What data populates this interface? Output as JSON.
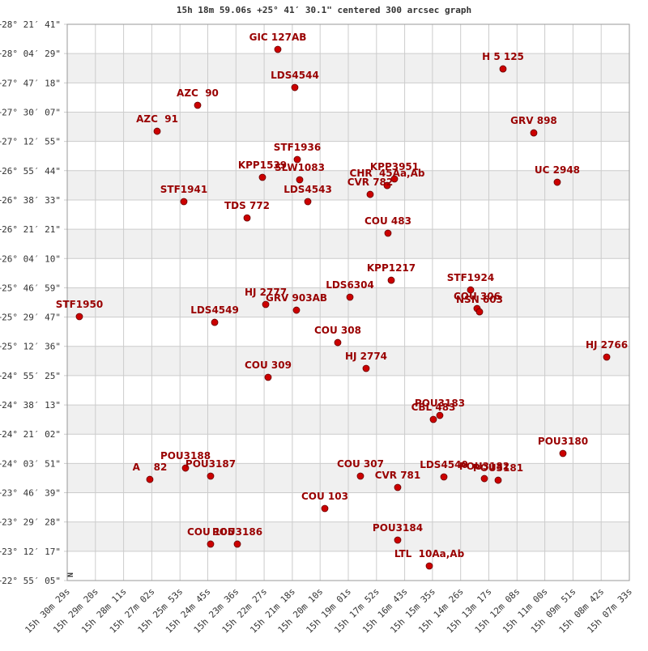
{
  "chart_data": {
    "type": "scatter",
    "title": "15h 18m 59.06s +25° 41′ 30.1\" centered 300 arcsec graph",
    "compass": "N",
    "marker_color": "#cc0000",
    "label_color": "#990000",
    "grid": true,
    "labels": [
      "GIC 127AB",
      "H 5 125",
      "LDS4544",
      "AZC  90",
      "AZC  91",
      "GRV 898",
      "STF1936",
      "KPP1539",
      "SLW1083",
      "CHR  45Aa,Ab",
      "KPP3951",
      "CVR 782",
      "UC 2948",
      "STF1941",
      "LDS4543",
      "TDS 772",
      "COU 483",
      "KPP1217",
      "STF1924",
      "COU 306",
      "NSN 603",
      "LDS6304",
      "HJ 2777",
      "GRV 903AB",
      "STF1950",
      "LDS4549",
      "COU 308",
      "HJ 2766",
      "HJ 2774",
      "COU 309",
      "POU3183",
      "CBL 483",
      "POU3180",
      "POU3188",
      "POU3187",
      "A    82",
      "COU 307",
      "LDS4540",
      "POU3182",
      "POU3181",
      "CVR 781",
      "COU 103",
      "COU 105",
      "POU3186",
      "POU3184",
      "LTL  10Aa,Ab"
    ],
    "x": [
      55313.5,
      54762.3,
      55271.9,
      55509.8,
      55608.9,
      54687.0,
      55265.9,
      55351.2,
      55260.0,
      55045.8,
      55028.0,
      55087.5,
      54629.5,
      55543.5,
      55240.1,
      55388.8,
      55043.9,
      55035.9,
      54841.6,
      54825.8,
      54819.8,
      55137.0,
      55343.2,
      55267.9,
      55799.3,
      55468.1,
      55166.8,
      54508.5,
      55097.4,
      55337.3,
      54917.0,
      54932.8,
      54615.6,
      55539.5,
      55478.1,
      55626.8,
      55111.3,
      54907.0,
      54807.9,
      54774.2,
      55020.1,
      55198.5,
      55478.1,
      55412.6,
      55020.1,
      54942.7
    ],
    "y": [
      28.116,
      27.925,
      27.743,
      27.569,
      27.315,
      27.299,
      27.038,
      26.864,
      26.84,
      26.784,
      26.848,
      26.697,
      26.816,
      26.626,
      26.626,
      26.467,
      26.317,
      25.857,
      25.762,
      25.58,
      25.548,
      25.691,
      25.62,
      25.564,
      25.501,
      25.445,
      25.247,
      25.105,
      24.994,
      24.907,
      24.534,
      24.495,
      24.162,
      24.019,
      23.94,
      23.908,
      23.94,
      23.932,
      23.916,
      23.9,
      23.829,
      23.623,
      23.275,
      23.275,
      23.314,
      23.061
    ],
    "xlim": [
      55829,
      54453
    ],
    "ylim": [
      22.9181,
      28.3614
    ],
    "xticks": [
      {
        "value": 55829,
        "label": "15h 30m 29s"
      },
      {
        "value": 55760,
        "label": "15h 29m 20s"
      },
      {
        "value": 55691,
        "label": "15h 28m 11s"
      },
      {
        "value": 55622,
        "label": "15h 27m 02s"
      },
      {
        "value": 55553,
        "label": "15h 25m 53s"
      },
      {
        "value": 55485,
        "label": "15h 24m 45s"
      },
      {
        "value": 55416,
        "label": "15h 23m 36s"
      },
      {
        "value": 55347,
        "label": "15h 22m 27s"
      },
      {
        "value": 55278,
        "label": "15h 21m 18s"
      },
      {
        "value": 55210,
        "label": "15h 20m 10s"
      },
      {
        "value": 55141,
        "label": "15h 19m 01s"
      },
      {
        "value": 55072,
        "label": "15h 17m 52s"
      },
      {
        "value": 55003,
        "label": "15h 16m 43s"
      },
      {
        "value": 54935,
        "label": "15h 15m 35s"
      },
      {
        "value": 54866,
        "label": "15h 14m 26s"
      },
      {
        "value": 54797,
        "label": "15h 13m 17s"
      },
      {
        "value": 54728,
        "label": "15h 12m 08s"
      },
      {
        "value": 54660,
        "label": "15h 11m 00s"
      },
      {
        "value": 54591,
        "label": "15h 09m 51s"
      },
      {
        "value": 54522,
        "label": "15h 08m 42s"
      },
      {
        "value": 54453,
        "label": "15h 07m 33s"
      }
    ],
    "yticks": [
      {
        "value": 28.3614,
        "label": "+28° 21′ 41\""
      },
      {
        "value": 28.0747,
        "label": "+28° 04′ 29\""
      },
      {
        "value": 27.7883,
        "label": "+27° 47′ 18\""
      },
      {
        "value": 27.5019,
        "label": "+27° 30′ 07\""
      },
      {
        "value": 27.2153,
        "label": "+27° 12′ 55\""
      },
      {
        "value": 26.9289,
        "label": "+26° 55′ 44\""
      },
      {
        "value": 26.6425,
        "label": "+26° 38′ 33\""
      },
      {
        "value": 26.3558,
        "label": "+26° 21′ 21\""
      },
      {
        "value": 26.0694,
        "label": "+26° 04′ 10\""
      },
      {
        "value": 25.7831,
        "label": "+25° 46′ 59\""
      },
      {
        "value": 25.4964,
        "label": "+25° 29′ 47\""
      },
      {
        "value": 25.21,
        "label": "+25° 12′ 36\""
      },
      {
        "value": 24.9236,
        "label": "+24° 55′ 25\""
      },
      {
        "value": 24.6369,
        "label": "+24° 38′ 13\""
      },
      {
        "value": 24.3506,
        "label": "+24° 21′ 02\""
      },
      {
        "value": 24.0642,
        "label": "+24° 03′ 51\""
      },
      {
        "value": 23.7775,
        "label": "+23° 46′ 39\""
      },
      {
        "value": 23.4911,
        "label": "+23° 29′ 28\""
      },
      {
        "value": 23.2047,
        "label": "+23° 12′ 17\""
      },
      {
        "value": 22.9181,
        "label": "+22° 55′ 05\""
      }
    ]
  }
}
